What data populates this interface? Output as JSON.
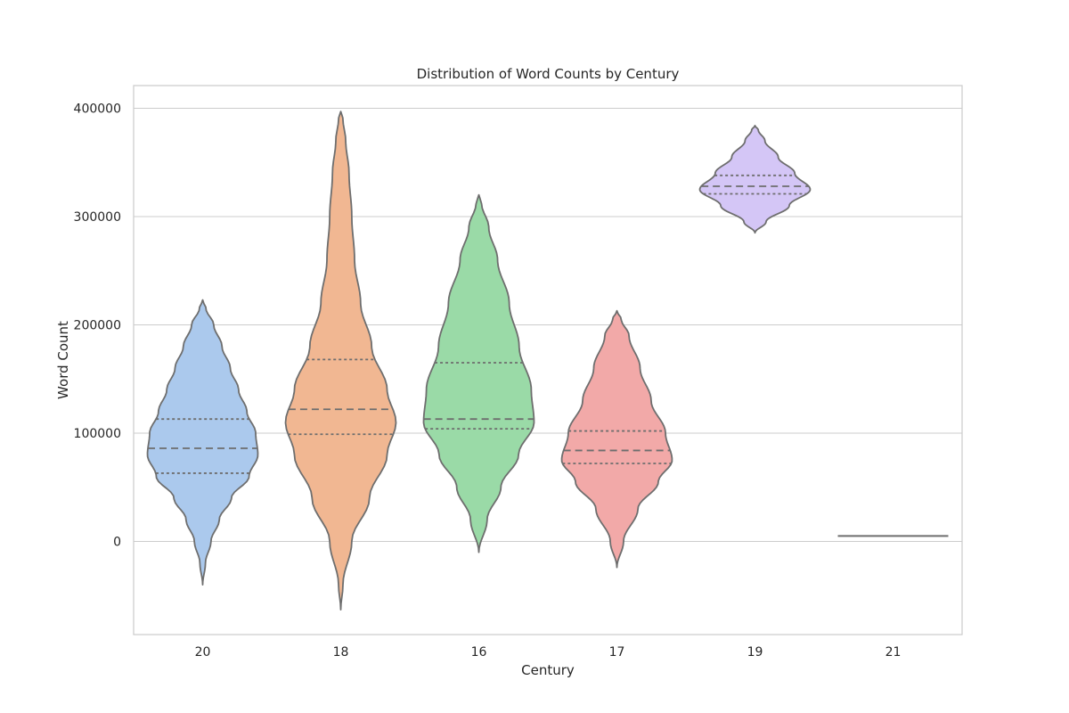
{
  "chart_data": {
    "type": "violin",
    "title": "Distribution of Word Counts by Century",
    "xlabel": "Century",
    "ylabel": "Word Count",
    "categories": [
      "20",
      "18",
      "16",
      "17",
      "19",
      "21"
    ],
    "yticks": [
      "0",
      "100000",
      "200000",
      "300000",
      "400000"
    ],
    "ylim": [
      -85000,
      420000
    ],
    "grid": true,
    "violins": [
      {
        "category": "20",
        "color": "#abc9ed",
        "min": -40000,
        "max": 223000,
        "q1": 63000,
        "median": 86000,
        "q3": 113000,
        "profile": [
          [
            -40000,
            0
          ],
          [
            -20000,
            0.05
          ],
          [
            0,
            0.15
          ],
          [
            20000,
            0.3
          ],
          [
            40000,
            0.52
          ],
          [
            60000,
            0.84
          ],
          [
            80000,
            1.0
          ],
          [
            100000,
            0.96
          ],
          [
            120000,
            0.8
          ],
          [
            140000,
            0.65
          ],
          [
            160000,
            0.5
          ],
          [
            180000,
            0.35
          ],
          [
            200000,
            0.2
          ],
          [
            215000,
            0.06
          ],
          [
            223000,
            0
          ]
        ]
      },
      {
        "category": "18",
        "color": "#f1b792",
        "min": -63000,
        "max": 397000,
        "q1": 99000,
        "median": 122000,
        "q3": 168000,
        "profile": [
          [
            -63000,
            0
          ],
          [
            -40000,
            0.04
          ],
          [
            0,
            0.2
          ],
          [
            40000,
            0.52
          ],
          [
            80000,
            0.84
          ],
          [
            110000,
            1.0
          ],
          [
            140000,
            0.84
          ],
          [
            180000,
            0.56
          ],
          [
            220000,
            0.36
          ],
          [
            260000,
            0.25
          ],
          [
            300000,
            0.2
          ],
          [
            340000,
            0.15
          ],
          [
            370000,
            0.09
          ],
          [
            390000,
            0.04
          ],
          [
            397000,
            0
          ]
        ]
      },
      {
        "category": "16",
        "color": "#9adaa7",
        "min": -10000,
        "max": 320000,
        "q1": 104000,
        "median": 113000,
        "q3": 165000,
        "profile": [
          [
            -10000,
            0
          ],
          [
            20000,
            0.15
          ],
          [
            50000,
            0.4
          ],
          [
            80000,
            0.72
          ],
          [
            110000,
            1.0
          ],
          [
            140000,
            0.95
          ],
          [
            180000,
            0.73
          ],
          [
            220000,
            0.55
          ],
          [
            260000,
            0.34
          ],
          [
            290000,
            0.18
          ],
          [
            312000,
            0.05
          ],
          [
            320000,
            0
          ]
        ]
      },
      {
        "category": "17",
        "color": "#f2a9a8",
        "min": -24000,
        "max": 213000,
        "q1": 72000,
        "median": 84000,
        "q3": 102000,
        "profile": [
          [
            -24000,
            0
          ],
          [
            0,
            0.12
          ],
          [
            30000,
            0.38
          ],
          [
            55000,
            0.75
          ],
          [
            75000,
            1.0
          ],
          [
            100000,
            0.88
          ],
          [
            130000,
            0.62
          ],
          [
            160000,
            0.42
          ],
          [
            190000,
            0.22
          ],
          [
            205000,
            0.08
          ],
          [
            213000,
            0
          ]
        ]
      },
      {
        "category": "19",
        "color": "#d4c6f6",
        "min": 285000,
        "max": 384000,
        "q1": 321000,
        "median": 328000,
        "q3": 338000,
        "profile": [
          [
            285000,
            0
          ],
          [
            295000,
            0.2
          ],
          [
            310000,
            0.62
          ],
          [
            325000,
            1.0
          ],
          [
            340000,
            0.72
          ],
          [
            355000,
            0.42
          ],
          [
            370000,
            0.18
          ],
          [
            380000,
            0.06
          ],
          [
            384000,
            0
          ]
        ]
      },
      {
        "category": "21",
        "color": "#6e6e6e",
        "min": 5000,
        "max": 5000,
        "q1": 5000,
        "median": 5000,
        "q3": 5000,
        "profile": []
      }
    ]
  }
}
